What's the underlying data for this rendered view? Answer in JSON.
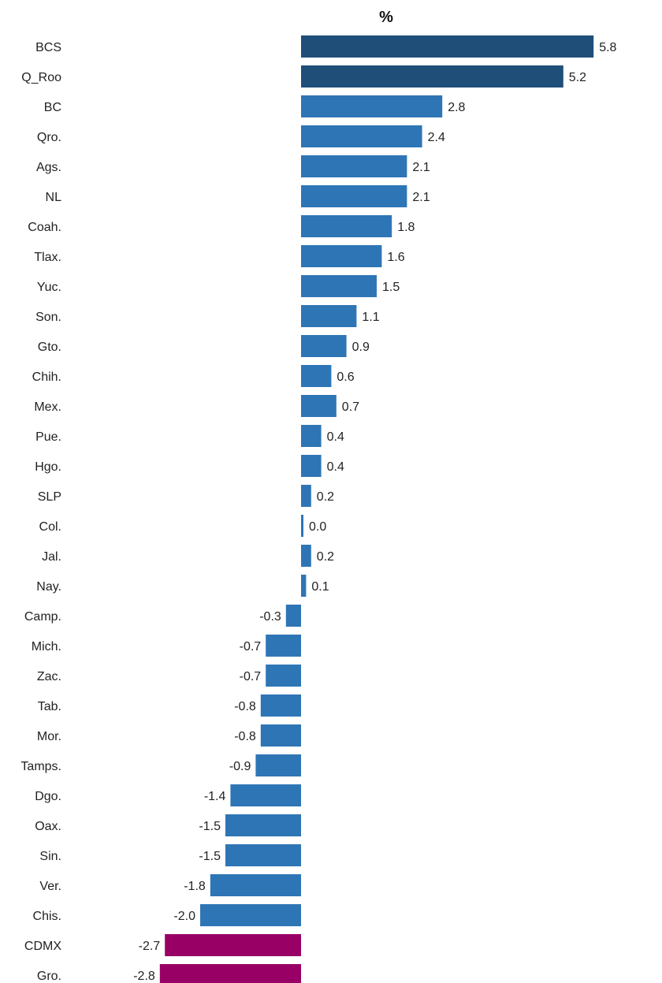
{
  "chart_data": {
    "type": "bar",
    "orientation": "horizontal",
    "title": "%",
    "xlabel": "",
    "ylabel": "",
    "grid": false,
    "categories": [
      "BCS",
      "Q_Roo",
      "BC",
      "Qro.",
      "Ags.",
      "NL",
      "Coah.",
      "Tlax.",
      "Yuc.",
      "Son.",
      "Gto.",
      "Chih.",
      "Mex.",
      "Pue.",
      "Hgo.",
      "SLP",
      "Col.",
      "Jal.",
      "Nay.",
      "Camp.",
      "Mich.",
      "Zac.",
      "Tab.",
      "Mor.",
      "Tamps.",
      "Dgo.",
      "Oax.",
      "Sin.",
      "Ver.",
      "Chis.",
      "CDMX",
      "Gro."
    ],
    "values": [
      5.8,
      5.2,
      2.8,
      2.4,
      2.1,
      2.1,
      1.8,
      1.6,
      1.5,
      1.1,
      0.9,
      0.6,
      0.7,
      0.4,
      0.4,
      0.2,
      0.0,
      0.2,
      0.1,
      -0.3,
      -0.7,
      -0.7,
      -0.8,
      -0.8,
      -0.9,
      -1.4,
      -1.5,
      -1.5,
      -1.8,
      -2.0,
      -2.7,
      -2.8
    ],
    "value_labels": [
      "5.8",
      "5.2",
      "2.8",
      "2.4",
      "2.1",
      "2.1",
      "1.8",
      "1.6",
      "1.5",
      "1.1",
      "0.9",
      "0.6",
      "0.7",
      "0.4",
      "0.4",
      "0.2",
      "0.0",
      "0.2",
      "0.1",
      "-0.3",
      "-0.7",
      "-0.7",
      "-0.8",
      "-0.8",
      "-0.9",
      "-1.4",
      "-1.5",
      "-1.5",
      "-1.8",
      "-2.0",
      "-2.7",
      "-2.8"
    ],
    "bar_colors": [
      "#1f4e79",
      "#1f4e79",
      "#2e75b6",
      "#2e75b6",
      "#2e75b6",
      "#2e75b6",
      "#2e75b6",
      "#2e75b6",
      "#2e75b6",
      "#2e75b6",
      "#2e75b6",
      "#2e75b6",
      "#2e75b6",
      "#2e75b6",
      "#2e75b6",
      "#2e75b6",
      "#2e75b6",
      "#2e75b6",
      "#2e75b6",
      "#2e75b6",
      "#2e75b6",
      "#2e75b6",
      "#2e75b6",
      "#2e75b6",
      "#2e75b6",
      "#2e75b6",
      "#2e75b6",
      "#2e75b6",
      "#2e75b6",
      "#2e75b6",
      "#990066",
      "#990066"
    ],
    "xlim": [
      -2.8,
      5.8
    ]
  }
}
